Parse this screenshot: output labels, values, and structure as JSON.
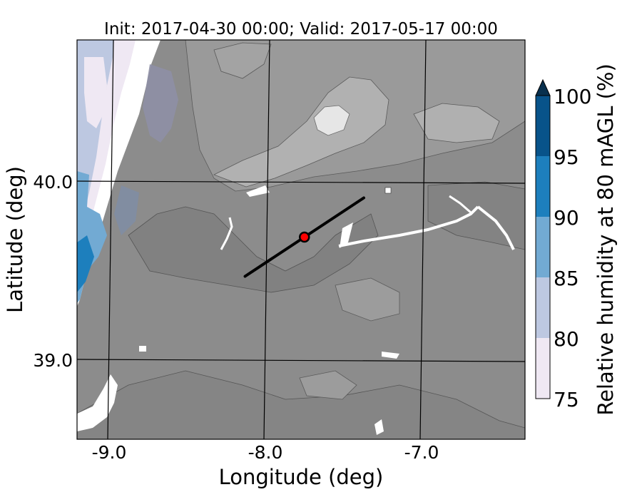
{
  "title": "Init: 2017-04-30 00:00; Valid: 2017-05-17 00:00",
  "map": {
    "xlabel": "Longitude (deg)",
    "ylabel": "Latitude (deg)",
    "xticks": [
      "-9.0",
      "-8.0",
      "-7.0"
    ],
    "yticks": [
      "40.0",
      "39.0"
    ],
    "graticule_lon": [
      -9.0,
      -8.0,
      -7.0
    ],
    "graticule_lat": [
      40.0,
      39.0
    ],
    "transect": {
      "start": {
        "lon": -8.13,
        "lat": 39.47
      },
      "end": {
        "lon": -7.37,
        "lat": 39.91
      },
      "color": "#000000"
    },
    "point": {
      "lon": -7.75,
      "lat": 39.69,
      "fill": "#ff0000",
      "stroke": "#000000"
    },
    "colors": {
      "ocean_white": "#ffffff",
      "terrain_low": "#878787",
      "terrain_mid": "#979797",
      "terrain_high": "#b3b3b3",
      "terrain_peak": "#e6e6e6",
      "contour": "#555555",
      "coast_blue_dark": "#0c6aa8",
      "coast_blue_mid": "#74a8d2",
      "coast_lavender": "#bfc8e0"
    }
  },
  "colorbar": {
    "label": "Relative humidity at 80 mAGL (%)",
    "ticks": [
      "100",
      "95",
      "90",
      "85",
      "80",
      "75"
    ],
    "levels": [
      {
        "range": "95-100",
        "color": "#08538a"
      },
      {
        "range": "90-95",
        "color": "#1d7fbd"
      },
      {
        "range": "85-90",
        "color": "#72aad3"
      },
      {
        "range": "80-85",
        "color": "#bdc8e1"
      },
      {
        "range": "75-80",
        "color": "#efe8f3"
      }
    ],
    "extend": "max"
  }
}
